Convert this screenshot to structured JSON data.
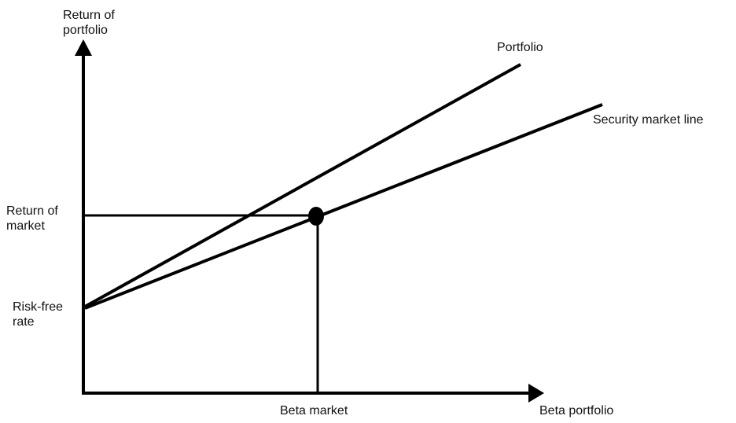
{
  "diagram": {
    "y_axis_label": [
      "Return of",
      "portfolio"
    ],
    "x_axis_label": "Beta portfolio",
    "return_of_market_label": [
      "Return of",
      "market"
    ],
    "risk_free_label": [
      "Risk-free",
      "rate"
    ],
    "beta_market_label": "Beta market",
    "portfolio_line_label": "Portfolio",
    "sml_label": "Security market line",
    "line_color": "#000000"
  }
}
